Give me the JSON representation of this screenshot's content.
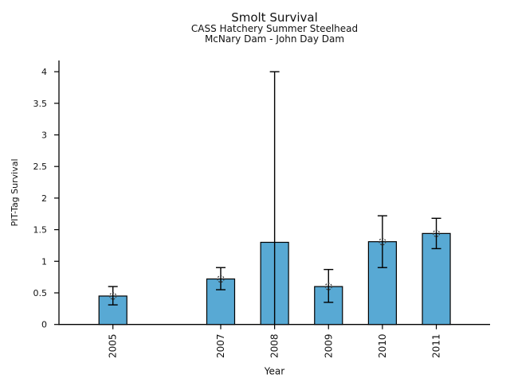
{
  "chart_data": {
    "type": "bar",
    "title": "Smolt Survival",
    "subtitles": [
      "CASS Hatchery Summer Steelhead",
      "McNary Dam - John Day Dam"
    ],
    "xlabel": "Year",
    "ylabel": "PIT-Tag Survival",
    "categories": [
      "2005",
      "2007",
      "2008",
      "2009",
      "2010",
      "2011"
    ],
    "values": [
      0.45,
      0.72,
      1.3,
      0.6,
      1.31,
      1.44
    ],
    "error_low": [
      0.31,
      0.55,
      0.0,
      0.35,
      0.9,
      1.2
    ],
    "error_high": [
      0.6,
      0.9,
      4.0,
      0.87,
      1.72,
      1.68
    ],
    "marker_shown": [
      true,
      true,
      false,
      true,
      true,
      true
    ],
    "cap_bottom_shown": [
      true,
      true,
      false,
      true,
      true,
      true
    ],
    "cap_top_shown": [
      true,
      true,
      true,
      true,
      true,
      true
    ],
    "ytick_labels": [
      "0",
      "0.5",
      "1",
      "1.5",
      "2",
      "2.5",
      "3",
      "3.5",
      "4"
    ],
    "ylim": [
      0,
      4.18
    ],
    "grid": false,
    "legend_position": "none",
    "bar_color": "#58A9D4",
    "bar_edge_color": "#000000",
    "errorbar_color": "#000000",
    "marker_edge_color": "#3a3a3a",
    "note": "No bar shown for year 2006 (gap in x-axis)"
  }
}
